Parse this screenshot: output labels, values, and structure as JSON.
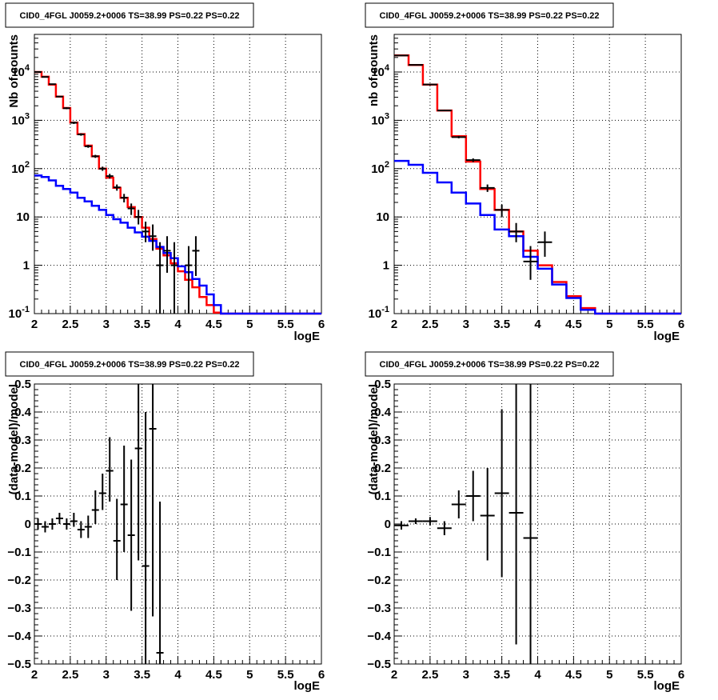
{
  "chart_data": [
    {
      "type": "line",
      "title": "CID0_4FGL J0059.2+0006 TS=38.99 PS=0.22 PS=0.22",
      "xlabel": "logE",
      "ylabel": "Nb of counts",
      "xlim": [
        2,
        6
      ],
      "ylim": [
        0.1,
        60000
      ],
      "ylog": true,
      "grid": true,
      "x_tick_labels": [
        "2",
        "2.5",
        "3",
        "3.5",
        "4",
        "4.5",
        "5",
        "5.5",
        "6"
      ],
      "y_tick_labels": [
        "10^-1",
        "1",
        "10",
        "10^2",
        "10^3",
        "10^4"
      ],
      "bin_edges": [
        2.0,
        2.1,
        2.2,
        2.3,
        2.4,
        2.5,
        2.6,
        2.7,
        2.8,
        2.9,
        3.0,
        3.1,
        3.2,
        3.3,
        3.4,
        3.5,
        3.6,
        3.7,
        3.8,
        3.9,
        4.0,
        4.1,
        4.2,
        4.3,
        4.4,
        4.5,
        4.6,
        4.7,
        4.8,
        4.9,
        5.0,
        5.1,
        5.2,
        5.3,
        5.4,
        5.5,
        5.6,
        5.7,
        5.8,
        5.9,
        6.0
      ],
      "series": [
        {
          "color": "#ff0000",
          "style": "step",
          "values": [
            10000,
            8000,
            5500,
            3100,
            1800,
            900,
            520,
            300,
            180,
            100,
            65,
            40,
            25,
            16,
            10,
            6,
            3.5,
            2.2,
            1.6,
            1.1,
            0.75,
            0.5,
            0.35,
            0.22,
            0.15,
            0.105,
            0.1,
            0.1,
            0.1,
            0.1,
            0.1,
            0.1,
            0.1,
            0.1,
            0.1,
            0.1,
            0.1,
            0.1,
            0.1,
            0.1
          ]
        },
        {
          "color": "#0000ff",
          "style": "step",
          "values": [
            72,
            67,
            57,
            44,
            38,
            32,
            25,
            21,
            17,
            14,
            11,
            9,
            7.6,
            6,
            4.8,
            3.9,
            3.2,
            2.4,
            1.8,
            1.4,
            0.95,
            0.72,
            0.52,
            0.38,
            0.25,
            0.15,
            0.1,
            0.1,
            0.1,
            0.1,
            0.1,
            0.1,
            0.1,
            0.1,
            0.1,
            0.1,
            0.1,
            0.1,
            0.1,
            0.1
          ]
        }
      ],
      "data_points": [
        {
          "x": 2.05,
          "y": 10000,
          "lo": 9800,
          "hi": 10200
        },
        {
          "x": 2.15,
          "y": 7900,
          "lo": 7700,
          "hi": 8100
        },
        {
          "x": 2.25,
          "y": 5600,
          "lo": 5450,
          "hi": 5750
        },
        {
          "x": 2.35,
          "y": 3100,
          "lo": 3000,
          "hi": 3200
        },
        {
          "x": 2.45,
          "y": 1780,
          "lo": 1700,
          "hi": 1860
        },
        {
          "x": 2.55,
          "y": 890,
          "lo": 840,
          "hi": 940
        },
        {
          "x": 2.65,
          "y": 510,
          "lo": 480,
          "hi": 540
        },
        {
          "x": 2.75,
          "y": 290,
          "lo": 270,
          "hi": 310
        },
        {
          "x": 2.85,
          "y": 180,
          "lo": 167,
          "hi": 193
        },
        {
          "x": 2.95,
          "y": 100,
          "lo": 90,
          "hi": 110
        },
        {
          "x": 3.05,
          "y": 70,
          "lo": 62,
          "hi": 78
        },
        {
          "x": 3.15,
          "y": 41,
          "lo": 35,
          "hi": 47
        },
        {
          "x": 3.25,
          "y": 25,
          "lo": 20,
          "hi": 30
        },
        {
          "x": 3.35,
          "y": 15,
          "lo": 11,
          "hi": 19
        },
        {
          "x": 3.45,
          "y": 10,
          "lo": 7,
          "hi": 14
        },
        {
          "x": 3.55,
          "y": 5,
          "lo": 3,
          "hi": 8
        },
        {
          "x": 3.65,
          "y": 4,
          "lo": 2,
          "hi": 7
        },
        {
          "x": 3.75,
          "y": 1,
          "lo": 0.1,
          "hi": 3
        },
        {
          "x": 3.85,
          "y": 2,
          "lo": 0.7,
          "hi": 4
        },
        {
          "x": 3.95,
          "y": 1,
          "lo": 0.1,
          "hi": 3
        },
        {
          "x": 4.15,
          "y": 1,
          "lo": 0.1,
          "hi": 2.5
        },
        {
          "x": 4.25,
          "y": 2,
          "lo": 0.6,
          "hi": 4
        }
      ]
    },
    {
      "type": "line",
      "title": "CID0_4FGL J0059.2+0006 TS=38.99 PS=0.22 PS=0.22",
      "xlabel": "logE",
      "ylabel": "nb of counts",
      "xlim": [
        2,
        6
      ],
      "ylim": [
        0.1,
        60000
      ],
      "ylog": true,
      "grid": true,
      "x_tick_labels": [
        "2",
        "2.5",
        "3",
        "3.5",
        "4",
        "4.5",
        "5",
        "5.5",
        "6"
      ],
      "y_tick_labels": [
        "10^-1",
        "1",
        "10",
        "10^2",
        "10^3",
        "10^4"
      ],
      "bin_edges": [
        2.0,
        2.2,
        2.4,
        2.6,
        2.8,
        3.0,
        3.2,
        3.4,
        3.6,
        3.8,
        4.0,
        4.2,
        4.4,
        4.6,
        4.8,
        5.0,
        5.2,
        5.4,
        5.6,
        5.8,
        6.0
      ],
      "series": [
        {
          "color": "#ff0000",
          "style": "step",
          "values": [
            22000,
            14000,
            5500,
            1600,
            470,
            140,
            38,
            14,
            5,
            2,
            1,
            0.45,
            0.23,
            0.13,
            0.1,
            0.1,
            0.1,
            0.1,
            0.1,
            0.1
          ]
        },
        {
          "color": "#0000ff",
          "style": "step",
          "values": [
            145,
            120,
            82,
            52,
            32,
            19,
            11,
            5.5,
            4,
            1.5,
            0.85,
            0.4,
            0.21,
            0.12,
            0.1,
            0.1,
            0.1,
            0.1,
            0.1,
            0.1
          ]
        }
      ],
      "data_points": [
        {
          "x": 2.1,
          "y": 22000,
          "lo": 21700,
          "hi": 22300
        },
        {
          "x": 2.3,
          "y": 14000,
          "lo": 13800,
          "hi": 14200
        },
        {
          "x": 2.5,
          "y": 5500,
          "lo": 5400,
          "hi": 5600
        },
        {
          "x": 2.7,
          "y": 1600,
          "lo": 1550,
          "hi": 1650
        },
        {
          "x": 2.9,
          "y": 450,
          "lo": 425,
          "hi": 475
        },
        {
          "x": 3.1,
          "y": 150,
          "lo": 137,
          "hi": 163
        },
        {
          "x": 3.3,
          "y": 40,
          "lo": 33,
          "hi": 47
        },
        {
          "x": 3.5,
          "y": 14,
          "lo": 10,
          "hi": 18
        },
        {
          "x": 3.7,
          "y": 5,
          "lo": 3,
          "hi": 7.5
        },
        {
          "x": 3.9,
          "y": 1.2,
          "lo": 0.5,
          "hi": 2.5
        },
        {
          "x": 4.1,
          "y": 3,
          "lo": 1.5,
          "hi": 5
        }
      ]
    },
    {
      "type": "scatter",
      "title": "CID0_4FGL J0059.2+0006 TS=38.99 PS=0.22 PS=0.22",
      "xlabel": "logE",
      "ylabel": "(data-model)/model",
      "xlim": [
        2,
        6
      ],
      "ylim": [
        -0.5,
        0.5
      ],
      "grid": true,
      "x_tick_labels": [
        "2",
        "2.5",
        "3",
        "3.5",
        "4",
        "4.5",
        "5",
        "5.5",
        "6"
      ],
      "y_tick_labels": [
        "−0.5",
        "−0.4",
        "−0.3",
        "−0.2",
        "−0.1",
        "0",
        "0.1",
        "0.2",
        "0.3",
        "0.4",
        "0.5"
      ],
      "y_ticks": [
        -0.5,
        -0.4,
        -0.3,
        -0.2,
        -0.1,
        0,
        0.1,
        0.2,
        0.3,
        0.4,
        0.5
      ],
      "points": [
        {
          "x": 2.05,
          "y": 0.0,
          "lo": -0.02,
          "hi": 0.02,
          "xerr": 0.05
        },
        {
          "x": 2.15,
          "y": -0.01,
          "lo": -0.03,
          "hi": 0.01,
          "xerr": 0.05
        },
        {
          "x": 2.25,
          "y": 0.0,
          "lo": -0.02,
          "hi": 0.02,
          "xerr": 0.05
        },
        {
          "x": 2.35,
          "y": 0.02,
          "lo": 0.0,
          "hi": 0.04,
          "xerr": 0.05
        },
        {
          "x": 2.45,
          "y": 0.0,
          "lo": -0.02,
          "hi": 0.02,
          "xerr": 0.05
        },
        {
          "x": 2.55,
          "y": 0.01,
          "lo": -0.01,
          "hi": 0.04,
          "xerr": 0.05
        },
        {
          "x": 2.65,
          "y": -0.02,
          "lo": -0.05,
          "hi": 0.01,
          "xerr": 0.05
        },
        {
          "x": 2.75,
          "y": -0.01,
          "lo": -0.05,
          "hi": 0.03,
          "xerr": 0.05
        },
        {
          "x": 2.85,
          "y": 0.05,
          "lo": 0.0,
          "hi": 0.12,
          "xerr": 0.05
        },
        {
          "x": 2.95,
          "y": 0.11,
          "lo": 0.05,
          "hi": 0.18,
          "xerr": 0.05
        },
        {
          "x": 3.05,
          "y": 0.19,
          "lo": 0.08,
          "hi": 0.31,
          "xerr": 0.05
        },
        {
          "x": 3.15,
          "y": -0.06,
          "lo": -0.2,
          "hi": 0.09,
          "xerr": 0.05
        },
        {
          "x": 3.25,
          "y": 0.07,
          "lo": -0.1,
          "hi": 0.28,
          "xerr": 0.05
        },
        {
          "x": 3.35,
          "y": -0.04,
          "lo": -0.31,
          "hi": 0.23,
          "xerr": 0.05
        },
        {
          "x": 3.45,
          "y": 0.27,
          "lo": -0.13,
          "hi": 0.5,
          "xerr": 0.05
        },
        {
          "x": 3.55,
          "y": -0.15,
          "lo": -0.5,
          "hi": 0.4,
          "xerr": 0.05
        },
        {
          "x": 3.65,
          "y": 0.34,
          "lo": -0.33,
          "hi": 0.5,
          "xerr": 0.05
        },
        {
          "x": 3.75,
          "y": -0.46,
          "lo": -0.5,
          "hi": 0.08,
          "xerr": 0.05
        }
      ]
    },
    {
      "type": "scatter",
      "title": "CID0_4FGL J0059.2+0006 TS=38.99 PS=0.22 PS=0.22",
      "xlabel": "logE",
      "ylabel": "(data-model)/model",
      "xlim": [
        2,
        6
      ],
      "ylim": [
        -0.5,
        0.5
      ],
      "grid": true,
      "x_tick_labels": [
        "2",
        "2.5",
        "3",
        "3.5",
        "4",
        "4.5",
        "5",
        "5.5",
        "6"
      ],
      "y_tick_labels": [
        "−0.5",
        "−0.4",
        "−0.3",
        "−0.2",
        "−0.1",
        "0",
        "0.1",
        "0.2",
        "0.3",
        "0.4",
        "0.5"
      ],
      "y_ticks": [
        -0.5,
        -0.4,
        -0.3,
        -0.2,
        -0.1,
        0,
        0.1,
        0.2,
        0.3,
        0.4,
        0.5
      ],
      "points": [
        {
          "x": 2.1,
          "y": -0.005,
          "lo": -0.02,
          "hi": 0.01,
          "xerr": 0.1
        },
        {
          "x": 2.3,
          "y": 0.01,
          "lo": 0.0,
          "hi": 0.02,
          "xerr": 0.1
        },
        {
          "x": 2.5,
          "y": 0.01,
          "lo": -0.005,
          "hi": 0.025,
          "xerr": 0.1
        },
        {
          "x": 2.7,
          "y": -0.015,
          "lo": -0.04,
          "hi": 0.01,
          "xerr": 0.1
        },
        {
          "x": 2.9,
          "y": 0.07,
          "lo": 0.02,
          "hi": 0.12,
          "xerr": 0.1
        },
        {
          "x": 3.1,
          "y": 0.1,
          "lo": 0.01,
          "hi": 0.19,
          "xerr": 0.1
        },
        {
          "x": 3.3,
          "y": 0.03,
          "lo": -0.13,
          "hi": 0.2,
          "xerr": 0.1
        },
        {
          "x": 3.5,
          "y": 0.11,
          "lo": -0.19,
          "hi": 0.41,
          "xerr": 0.1
        },
        {
          "x": 3.7,
          "y": 0.04,
          "lo": -0.43,
          "hi": 0.5,
          "xerr": 0.1
        },
        {
          "x": 3.9,
          "y": -0.05,
          "lo": -0.5,
          "hi": 0.5,
          "xerr": 0.1
        }
      ]
    }
  ]
}
